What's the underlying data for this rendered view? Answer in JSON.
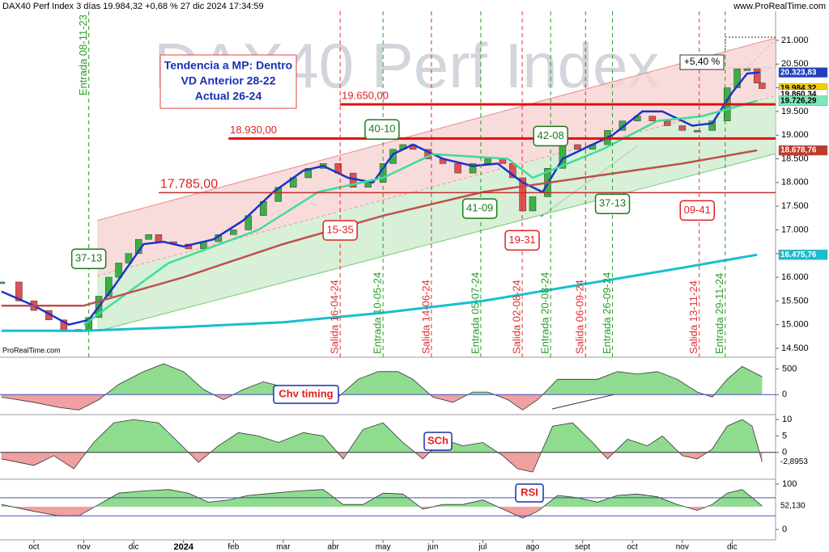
{
  "chart_data": [
    {
      "type": "candlestick",
      "title": "DAX40 Perf Index 3 días 19.984,32 +0,68 % 27 dic 2024 17:34:59",
      "watermark": "DAX40 Perf Index",
      "source": "www.ProRealTime.com",
      "source2": "ProRealTime.com",
      "xlim": [
        -0.68,
        14.87
      ],
      "xticks": [
        {
          "value": 0,
          "label": "oct"
        },
        {
          "value": 1,
          "label": "nov"
        },
        {
          "value": 2,
          "label": "dic"
        },
        {
          "value": 3,
          "label": "2024"
        },
        {
          "value": 4,
          "label": "feb"
        },
        {
          "value": 5,
          "label": "mar"
        },
        {
          "value": 6,
          "label": "abr"
        },
        {
          "value": 7,
          "label": "may"
        },
        {
          "value": 8,
          "label": "jun"
        },
        {
          "value": 9,
          "label": "jul"
        },
        {
          "value": 10,
          "label": "ago"
        },
        {
          "value": 11,
          "label": "sept"
        },
        {
          "value": 12,
          "label": "oct"
        },
        {
          "value": 13,
          "label": "nov"
        },
        {
          "value": 14,
          "label": "dic"
        }
      ],
      "ylim": [
        14312,
        21614
      ],
      "yticks": [
        {
          "value": 14500,
          "label": "14.500"
        },
        {
          "value": 15000,
          "label": "15.000"
        },
        {
          "value": 15500,
          "label": "15.500"
        },
        {
          "value": 16000,
          "label": "16.000"
        },
        {
          "value": 16500,
          "label": "16.500"
        },
        {
          "value": 17000,
          "label": "17.000"
        },
        {
          "value": 17500,
          "label": "17.500"
        },
        {
          "value": 18000,
          "label": "18.000"
        },
        {
          "value": 18500,
          "label": "18.500"
        },
        {
          "value": 19000,
          "label": "19.000"
        },
        {
          "value": 19500,
          "label": "19.500"
        },
        {
          "value": 20000,
          "label": "20.000"
        },
        {
          "value": 20500,
          "label": "20.500"
        },
        {
          "value": 21000,
          "label": "21.000"
        }
      ],
      "series": [
        {
          "color": "#2e9e3e",
          "x": [
            -0.65,
            -0.3,
            0,
            0.3,
            0.6,
            0.9,
            1.1,
            1.3,
            1.5,
            1.7,
            1.9,
            2.1,
            2.3,
            2.5,
            2.8,
            3.1,
            3.4,
            3.7,
            4.0,
            4.3,
            4.6,
            4.9,
            5.2,
            5.5,
            5.8,
            6.1,
            6.4,
            6.7,
            7.0,
            7.2,
            7.4,
            7.6,
            7.9,
            8.2,
            8.5,
            8.8,
            9.1,
            9.4,
            9.6,
            9.8,
            10.0,
            10.3,
            10.6,
            10.9,
            11.2,
            11.5,
            11.8,
            12.1,
            12.4,
            12.7,
            13.0,
            13.3,
            13.6,
            13.9,
            14.1,
            14.3,
            14.5,
            14.6
          ],
          "values": [
            15900,
            15500,
            15300,
            15100,
            14850,
            14900,
            15150,
            15600,
            16000,
            16300,
            16500,
            16800,
            16900,
            16750,
            16700,
            16600,
            16750,
            16900,
            17000,
            17300,
            17600,
            17900,
            18100,
            18300,
            18400,
            18200,
            17900,
            18000,
            18400,
            18700,
            18800,
            18700,
            18500,
            18400,
            18200,
            18400,
            18500,
            18400,
            18100,
            17400,
            17700,
            18300,
            18800,
            18700,
            18800,
            19100,
            19300,
            19400,
            19300,
            19200,
            19100,
            19100,
            19300,
            20000,
            20400,
            20400,
            20100,
            19984.32
          ]
        },
        {
          "color": "#1a33c9",
          "x": [
            -0.65,
            0,
            0.7,
            1.1,
            1.6,
            2.2,
            2.6,
            3.0,
            3.6,
            4.2,
            4.8,
            5.4,
            5.8,
            6.3,
            6.8,
            7.2,
            7.6,
            8.2,
            8.8,
            9.3,
            9.8,
            10.2,
            10.6,
            11.0,
            11.6,
            12.2,
            12.6,
            13.2,
            13.6,
            14.0,
            14.3,
            14.55
          ],
          "values": [
            15700,
            15400,
            15000,
            15100,
            15800,
            16700,
            16750,
            16650,
            16800,
            17200,
            17800,
            18250,
            18350,
            18100,
            18000,
            18600,
            18800,
            18500,
            18350,
            18400,
            18000,
            17800,
            18500,
            18700,
            19000,
            19500,
            19500,
            19200,
            19250,
            19900,
            20300,
            20323.83
          ]
        },
        {
          "color": "#3fdc9a",
          "x": [
            1.0,
            2.7,
            4.5,
            5.7,
            7.0,
            8.0,
            9.5,
            10.0,
            11.4,
            12.5,
            13.4,
            14.5
          ],
          "values": [
            15000,
            16300,
            17000,
            17800,
            18100,
            18600,
            18500,
            18100,
            18700,
            19300,
            19400,
            19726.29
          ]
        },
        {
          "color": "#c0504d",
          "x": [
            -0.65,
            1,
            3,
            5,
            7,
            9,
            11,
            13,
            14.5
          ],
          "values": [
            15400,
            15400,
            16000,
            16700,
            17300,
            17800,
            18100,
            18400,
            18678.76
          ]
        },
        {
          "color": "#17bfcf",
          "x": [
            -0.65,
            1,
            3,
            5,
            7,
            9,
            11,
            13,
            14.5
          ],
          "values": [
            14870,
            14870,
            14950,
            15050,
            15250,
            15500,
            15850,
            16200,
            16475.76
          ]
        }
      ],
      "channel": {
        "x": [
          1.27,
          14.87
        ],
        "upper": [
          17200,
          21050
        ],
        "lower": [
          14860,
          18610
        ]
      },
      "levels": [
        {
          "value": 19650,
          "label": "19.650,00",
          "x": 6.14
        },
        {
          "value": 18930,
          "label": "18.930,00",
          "x": 3.9
        },
        {
          "value": 17785,
          "label": "17.785,00",
          "x": 2.5
        }
      ],
      "signals": [
        {
          "x": 1.1,
          "label": "Entrada 08-11-23",
          "color": "#2a9d2a"
        },
        {
          "x": 6.14,
          "label": "Salida 16-04-24",
          "color": "#e03030"
        },
        {
          "x": 7.0,
          "label": "Entrada 10-05-24",
          "color": "#2a9d2a"
        },
        {
          "x": 7.97,
          "label": "Salida 14-06-24",
          "color": "#e03030"
        },
        {
          "x": 8.96,
          "label": "Entrada 05-07-24",
          "color": "#2a9d2a"
        },
        {
          "x": 9.79,
          "label": "Salida 02-08-24",
          "color": "#e03030"
        },
        {
          "x": 10.36,
          "label": "Entrada 20-08-24",
          "color": "#2a9d2a"
        },
        {
          "x": 11.06,
          "label": "Salida 06-09-24",
          "color": "#e03030"
        },
        {
          "x": 11.6,
          "label": "Entrada 26-09-24",
          "color": "#2a9d2a"
        },
        {
          "x": 13.34,
          "label": "Salida 13-11-24",
          "color": "#e03030"
        },
        {
          "x": 13.86,
          "label": "Entrada 29-11-24",
          "color": "#2a9d2a"
        }
      ],
      "boxes": [
        {
          "x": 1.1,
          "y": 16390,
          "label": "37-13",
          "color": "#1a7a1a"
        },
        {
          "x": 6.14,
          "y": 16990,
          "label": "15-35",
          "color": "#e02020"
        },
        {
          "x": 6.98,
          "y": 19120,
          "label": "40-10",
          "color": "#1a7a1a"
        },
        {
          "x": 8.94,
          "y": 17450,
          "label": "41-09",
          "color": "#1a7a1a"
        },
        {
          "x": 9.79,
          "y": 16780,
          "label": "19-31",
          "color": "#e02020"
        },
        {
          "x": 10.36,
          "y": 18980,
          "label": "42-08",
          "color": "#1a7a1a"
        },
        {
          "x": 11.6,
          "y": 17550,
          "label": "37-13",
          "color": "#1a7a1a"
        },
        {
          "x": 13.3,
          "y": 17410,
          "label": "09-41",
          "color": "#e02020"
        }
      ],
      "info": [
        "Tendencia a MP: Dentro",
        "VD Anterior 28-22",
        "Actual 26-24"
      ],
      "change_label": "+5,40 %",
      "price_labels": [
        {
          "value": 20323.83,
          "label": "20.323,83",
          "color": "#1f3fbf"
        },
        {
          "value": 19984.32,
          "label": "19.984,32",
          "color": "#f5d000"
        },
        {
          "value": 19860.34,
          "label": "19.860,34",
          "color": "#ffffff"
        },
        {
          "value": 19726.29,
          "label": "19.726,29",
          "color": "#7de8b8"
        },
        {
          "value": 18678.76,
          "label": "18.678,76",
          "color": "#c0392b"
        },
        {
          "value": 16475.76,
          "label": "16.475,76",
          "color": "#17bfcf"
        }
      ]
    },
    {
      "type": "area",
      "title": "Chv timing",
      "ylim": [
        -390,
        730
      ],
      "yticks": [
        0,
        500
      ],
      "x": [
        -0.65,
        0,
        0.5,
        0.9,
        1.3,
        1.7,
        2.2,
        2.6,
        3.0,
        3.4,
        3.8,
        4.2,
        4.6,
        5.0,
        5.4,
        5.8,
        6.1,
        6.5,
        6.9,
        7.3,
        7.6,
        8.0,
        8.4,
        8.8,
        9.1,
        9.5,
        9.8,
        10.1,
        10.5,
        10.9,
        11.3,
        11.7,
        12.1,
        12.5,
        12.9,
        13.3,
        13.6,
        13.9,
        14.2,
        14.6
      ],
      "values": [
        -50,
        -150,
        -250,
        -300,
        -100,
        200,
        450,
        600,
        450,
        100,
        -100,
        100,
        250,
        150,
        -50,
        -150,
        -50,
        300,
        450,
        450,
        300,
        -50,
        -150,
        50,
        50,
        -100,
        -300,
        -100,
        300,
        300,
        300,
        450,
        400,
        450,
        300,
        50,
        -50,
        300,
        550,
        350
      ]
    },
    {
      "type": "area",
      "title": "SCh",
      "ylim": [
        -8.2,
        11.5
      ],
      "yticks": [
        0,
        5,
        10
      ],
      "last_label": "-2,8953",
      "x": [
        -0.65,
        0,
        0.4,
        0.8,
        1.2,
        1.6,
        2.0,
        2.5,
        2.9,
        3.3,
        3.7,
        4.1,
        4.5,
        4.9,
        5.4,
        5.8,
        6.2,
        6.6,
        7.0,
        7.4,
        7.8,
        8.2,
        8.6,
        9.0,
        9.4,
        9.7,
        10.0,
        10.4,
        10.8,
        11.2,
        11.5,
        11.9,
        12.3,
        12.6,
        13.0,
        13.3,
        13.6,
        13.9,
        14.2,
        14.4,
        14.6
      ],
      "values": [
        -2,
        -4,
        -1,
        -5,
        3,
        9,
        10,
        9,
        3,
        -3,
        2,
        6,
        5,
        3,
        6,
        5,
        -2,
        7,
        9,
        3,
        -2,
        4,
        2,
        3,
        -1,
        -5,
        -6,
        8,
        9,
        3,
        -2,
        4,
        2,
        5,
        -1,
        -2,
        1,
        8,
        10,
        8,
        -2.8953
      ]
    },
    {
      "type": "area",
      "title": "RSI",
      "ylim": [
        -23,
        110.7
      ],
      "yticks": [
        0,
        100
      ],
      "hlines": [
        30,
        70
      ],
      "last_label": "52,130",
      "base": 50,
      "x": [
        -0.65,
        0,
        0.5,
        0.9,
        1.3,
        1.7,
        2.2,
        2.7,
        3.1,
        3.5,
        3.9,
        4.3,
        4.8,
        5.3,
        5.8,
        6.2,
        6.6,
        7.0,
        7.4,
        7.8,
        8.2,
        8.6,
        9.0,
        9.4,
        9.8,
        10.1,
        10.5,
        10.9,
        11.3,
        11.7,
        12.1,
        12.5,
        12.9,
        13.3,
        13.6,
        13.9,
        14.2,
        14.6
      ],
      "values": [
        55,
        40,
        30,
        30,
        55,
        80,
        85,
        88,
        80,
        60,
        65,
        75,
        80,
        85,
        88,
        55,
        55,
        80,
        78,
        45,
        55,
        55,
        65,
        45,
        25,
        40,
        75,
        70,
        60,
        75,
        78,
        72,
        55,
        42,
        55,
        80,
        88,
        52.13
      ]
    }
  ]
}
